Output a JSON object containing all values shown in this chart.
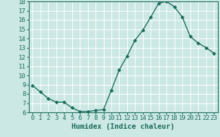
{
  "x": [
    0,
    1,
    2,
    3,
    4,
    5,
    6,
    7,
    8,
    9,
    10,
    11,
    12,
    13,
    14,
    15,
    16,
    17,
    18,
    19,
    20,
    21,
    22,
    23
  ],
  "y": [
    8.9,
    8.2,
    7.5,
    7.1,
    7.1,
    6.5,
    6.1,
    6.1,
    6.2,
    6.3,
    8.4,
    10.6,
    12.1,
    13.8,
    14.9,
    16.3,
    17.8,
    18.0,
    17.4,
    16.3,
    14.2,
    13.5,
    13.0,
    12.4
  ],
  "line_color": "#1a6b5a",
  "marker": "D",
  "marker_size": 2.5,
  "bg_color": "#cce8e5",
  "grid_color": "#b0d8d4",
  "xlabel": "Humidex (Indice chaleur)",
  "xlim": [
    -0.5,
    23.5
  ],
  "ylim": [
    6,
    18
  ],
  "yticks": [
    6,
    7,
    8,
    9,
    10,
    11,
    12,
    13,
    14,
    15,
    16,
    17,
    18
  ],
  "xticks": [
    0,
    1,
    2,
    3,
    4,
    5,
    6,
    7,
    8,
    9,
    10,
    11,
    12,
    13,
    14,
    15,
    16,
    17,
    18,
    19,
    20,
    21,
    22,
    23
  ],
  "tick_color": "#1a6b5a",
  "label_fontsize": 7.5,
  "tick_fontsize": 6.5,
  "line_width": 1.0
}
